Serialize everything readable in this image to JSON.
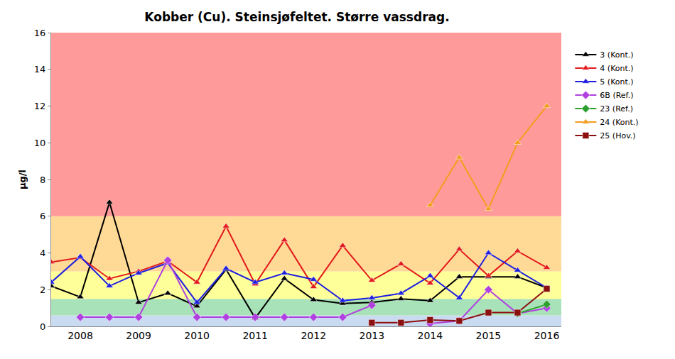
{
  "chart_data": {
    "type": "line",
    "title": "Kobber (Cu). Steinsjøfeltet. Større vassdrag.",
    "y_label": "µg/l",
    "categories": [
      null,
      "2008",
      null,
      "2009",
      null,
      "2010",
      null,
      "2011",
      null,
      "2012",
      null,
      "2013",
      null,
      "2014",
      null,
      "2015",
      null,
      "2016"
    ],
    "series": [
      {
        "name": "3 (Kont.)",
        "color": "#000000",
        "marker": "triangle-up",
        "values": [
          2.2,
          1.6,
          6.75,
          1.3,
          1.8,
          1.1,
          3.1,
          0.45,
          2.6,
          1.45,
          1.25,
          1.3,
          1.5,
          1.4,
          2.7,
          2.7,
          2.7,
          2.1
        ]
      },
      {
        "name": "4 (Kont.)",
        "color": "#e31a1c",
        "marker": "triangle-up",
        "values": [
          3.5,
          3.75,
          2.6,
          3.0,
          3.55,
          2.4,
          5.45,
          2.3,
          4.7,
          2.15,
          4.4,
          2.5,
          3.4,
          2.35,
          4.2,
          2.75,
          4.1,
          3.2
        ]
      },
      {
        "name": "5 (Kont.)",
        "color": "#1f1fe0",
        "marker": "triangle-up",
        "values": [
          2.4,
          3.8,
          2.2,
          2.9,
          3.45,
          1.3,
          3.15,
          2.4,
          2.9,
          2.55,
          1.4,
          1.55,
          1.8,
          2.75,
          1.55,
          4.0,
          3.05,
          2.1
        ]
      },
      {
        "name": "6B (Ref.)",
        "color": "#b040e0",
        "marker": "diamond",
        "values": [
          null,
          0.5,
          0.5,
          0.5,
          3.6,
          0.5,
          0.5,
          0.5,
          0.5,
          0.5,
          0.5,
          1.15,
          null,
          0.15,
          0.3,
          2.0,
          0.7,
          1.0
        ]
      },
      {
        "name": "23 (Ref.)",
        "color": "#2ca02c",
        "marker": "diamond",
        "values": [
          null,
          null,
          null,
          null,
          null,
          null,
          null,
          null,
          null,
          null,
          null,
          null,
          null,
          null,
          null,
          null,
          0.7,
          1.2
        ]
      },
      {
        "name": "24 (Kont.)",
        "color": "#f39c1f",
        "marker": "triangle-up",
        "values": [
          null,
          null,
          null,
          null,
          null,
          null,
          null,
          null,
          null,
          null,
          null,
          null,
          null,
          6.6,
          9.2,
          6.4,
          10.0,
          12.0
        ]
      },
      {
        "name": "25 (Hov.)",
        "color": "#8b0f0f",
        "marker": "square",
        "values": [
          null,
          null,
          null,
          null,
          null,
          null,
          null,
          null,
          null,
          null,
          null,
          0.2,
          0.2,
          0.35,
          0.3,
          0.75,
          0.75,
          2.05
        ]
      }
    ],
    "bands": [
      {
        "from": 0,
        "to": 0.6,
        "color": "#c9dbf0"
      },
      {
        "from": 0.6,
        "to": 1.5,
        "color": "#a8e2b8"
      },
      {
        "from": 1.5,
        "to": 3,
        "color": "#ffff99"
      },
      {
        "from": 3,
        "to": 6,
        "color": "#ffda96"
      },
      {
        "from": 6,
        "to": 16,
        "color": "#ff9a9a"
      }
    ],
    "ylim": [
      0,
      16
    ],
    "yticks": [
      0,
      2,
      4,
      6,
      8,
      10,
      12,
      14,
      16
    ],
    "grid": false,
    "legend": "right"
  }
}
